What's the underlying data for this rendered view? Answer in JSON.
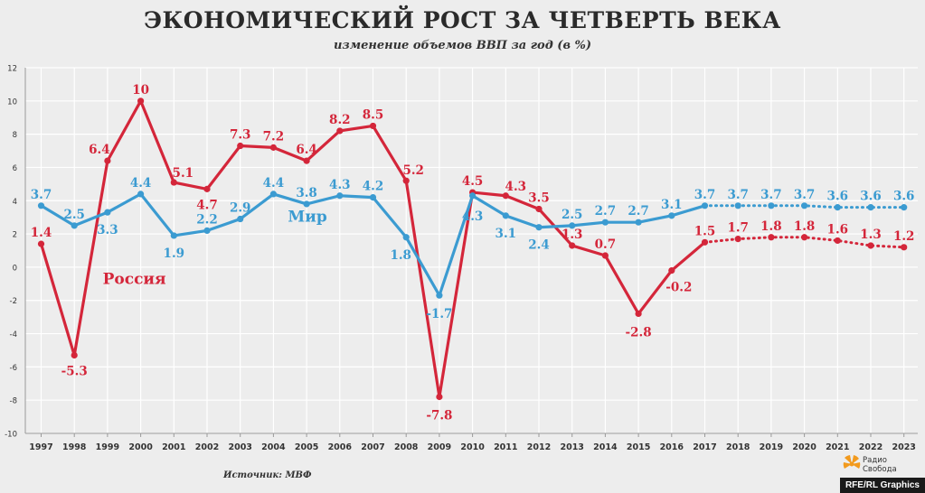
{
  "title": "ЭКОНОМИЧЕСКИЙ РОСТ ЗА ЧЕТВЕРТЬ ВЕКА",
  "subtitle": "изменение объемов ВВП за год (в %)",
  "source": "Источник: МВФ",
  "logo_text": [
    "Радио",
    "Свобода"
  ],
  "credit": "RFE/RL Graphics",
  "colors": {
    "russia": "#d4263a",
    "world": "#3b9bd1",
    "background": "#ededed",
    "grid": "#ffffff"
  },
  "chart_data": {
    "type": "line",
    "x": [
      1997,
      1998,
      1999,
      2000,
      2001,
      2002,
      2003,
      2004,
      2005,
      2006,
      2007,
      2008,
      2009,
      2010,
      2011,
      2012,
      2013,
      2014,
      2015,
      2016,
      2017,
      2018,
      2019,
      2020,
      2021,
      2022,
      2023
    ],
    "xtick_labels": [
      "1997",
      "1998",
      "1999",
      "2000",
      "2001",
      "2002",
      "2003",
      "2004",
      "2005",
      "2006",
      "2007",
      "2008",
      "2009",
      "2010",
      "2011",
      "2012",
      "2013",
      "2014",
      "2015",
      "2016",
      "2017",
      "2018",
      "2019",
      "2020",
      "2021",
      "2022",
      "2023"
    ],
    "ylim": [
      -10,
      12
    ],
    "yticks": [
      -10,
      -8,
      -6,
      -4,
      -2,
      0,
      2,
      4,
      6,
      8,
      10,
      12
    ],
    "ytick_labels": [
      "-10",
      "-8",
      "-6",
      "-4",
      "-2",
      "0",
      "2",
      "4",
      "6",
      "8",
      "10",
      "12"
    ],
    "grid": true,
    "forecast_from": 2017,
    "series": [
      {
        "name": "Россия",
        "color": "#d4263a",
        "values": [
          1.4,
          -5.3,
          6.4,
          10,
          5.1,
          4.7,
          7.3,
          7.2,
          6.4,
          8.2,
          8.5,
          5.2,
          -7.8,
          4.5,
          4.3,
          3.5,
          1.3,
          0.7,
          -2.8,
          -0.2,
          1.5,
          1.7,
          1.8,
          1.8,
          1.6,
          1.3,
          1.2
        ],
        "labels": [
          "1.4",
          "-5.3",
          "6.4",
          "10",
          "5.1",
          "4.7",
          "7.3",
          "7.2",
          "6.4",
          "8.2",
          "8.5",
          "5.2",
          "-7.8",
          "4.5",
          "4.3",
          "3.5",
          "1.3",
          "0.7",
          "-2.8",
          "-0.2",
          "1.5",
          "1.7",
          "1.8",
          "1.8",
          "1.6",
          "1.3",
          "1.2"
        ]
      },
      {
        "name": "Мир",
        "color": "#3b9bd1",
        "values": [
          3.7,
          2.5,
          3.3,
          4.4,
          1.9,
          2.2,
          2.9,
          4.4,
          3.8,
          4.3,
          4.2,
          1.8,
          -1.7,
          4.3,
          3.1,
          2.4,
          2.5,
          2.7,
          2.7,
          3.1,
          3.7,
          3.7,
          3.7,
          3.7,
          3.6,
          3.6,
          3.6
        ],
        "labels": [
          "3.7",
          "2.5",
          "3.3",
          "4.4",
          "1.9",
          "2.2",
          "2.9",
          "4.4",
          "3.8",
          "4.3",
          "4.2",
          "1.8",
          "-1.7",
          "4.3",
          "3.1",
          "2.4",
          "2.5",
          "2.7",
          "2.7",
          "3.1",
          "3.7",
          "3.7",
          "3.7",
          "3.7",
          "3.6",
          "3.6",
          "3.6"
        ]
      }
    ]
  }
}
